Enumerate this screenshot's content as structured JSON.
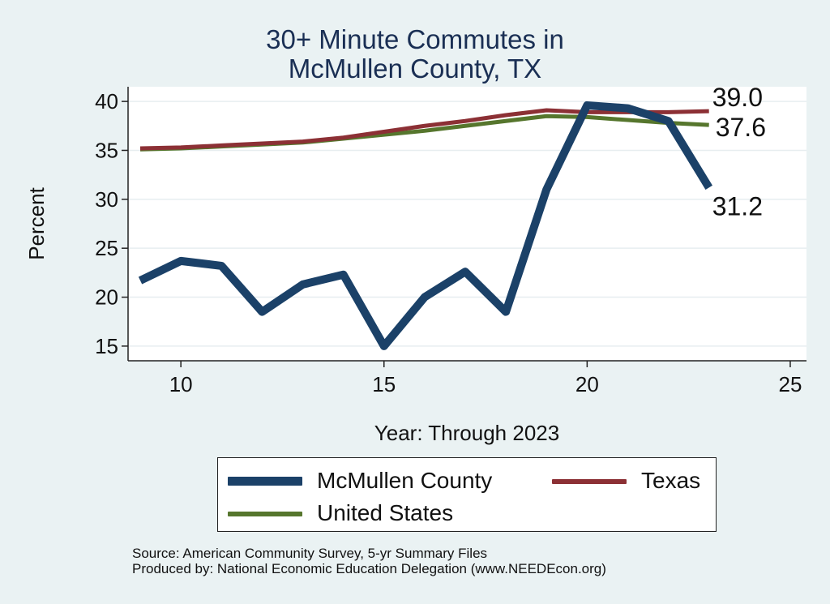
{
  "chart_data": {
    "type": "line",
    "title": [
      "30+ Minute Commutes in",
      "McMullen County, TX"
    ],
    "xlabel": "Year: Through 2023",
    "ylabel": "Percent",
    "xlim": [
      8.7,
      25.4
    ],
    "ylim": [
      13.5,
      41.5
    ],
    "xticks": [
      10,
      15,
      20,
      25
    ],
    "yticks": [
      15,
      20,
      25,
      30,
      35,
      40
    ],
    "x": [
      9,
      10,
      11,
      12,
      13,
      14,
      15,
      16,
      17,
      18,
      19,
      20,
      21,
      22,
      23
    ],
    "series": [
      {
        "name": "McMullen County",
        "color": "#1b4168",
        "width": "thick",
        "values": [
          21.7,
          23.7,
          23.2,
          18.5,
          21.3,
          22.3,
          15.0,
          20.0,
          22.6,
          18.5,
          31.0,
          39.6,
          39.3,
          38.0,
          31.2
        ],
        "end_label": "31.2"
      },
      {
        "name": "Texas",
        "color": "#8c3035",
        "width": "thin",
        "values": [
          35.2,
          35.3,
          35.5,
          35.7,
          35.9,
          36.3,
          36.9,
          37.5,
          38.0,
          38.6,
          39.1,
          38.9,
          38.9,
          38.9,
          39.0
        ],
        "end_label": "39.0"
      },
      {
        "name": "United States",
        "color": "#56762d",
        "width": "thin",
        "values": [
          35.1,
          35.2,
          35.4,
          35.6,
          35.8,
          36.2,
          36.6,
          37.0,
          37.5,
          38.0,
          38.5,
          38.4,
          38.1,
          37.8,
          37.6
        ],
        "end_label": "37.6"
      }
    ],
    "grid": true,
    "legend": "bottom"
  },
  "legend": {
    "mcmullen": "McMullen County",
    "texas": "Texas",
    "us": "United States"
  },
  "title": {
    "line1": "30+ Minute Commutes in",
    "line2": "McMullen County, TX"
  },
  "axes": {
    "xlabel": "Year: Through 2023",
    "ylabel": "Percent"
  },
  "notes": {
    "source": "Source: American Community Survey, 5-yr Summary Files",
    "produced": "Produced by: National Economic Education Delegation (www.NEEDEcon.org)"
  }
}
